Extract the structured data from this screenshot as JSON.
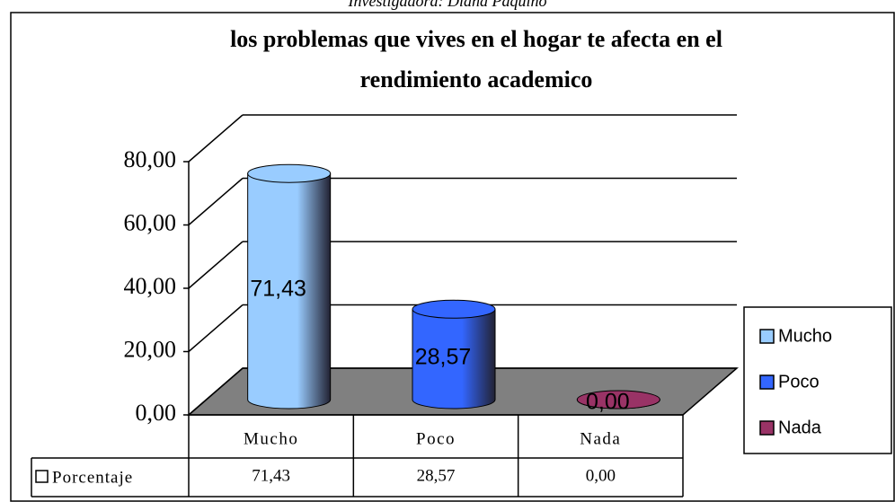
{
  "caption": "Investigadora: Diana Paquino",
  "chart_data": {
    "type": "bar3d",
    "title": [
      "los problemas que vives en el hogar te afecta en el",
      "rendimiento academico"
    ],
    "categories": [
      "Mucho",
      "Poco",
      "Nada"
    ],
    "colors": [
      "#99ccff",
      "#3366ff",
      "#993366"
    ],
    "series": [
      {
        "name": "Porcentaje",
        "values": [
          71.43,
          28.57,
          0.0
        ],
        "value_labels": [
          "71,43",
          "28,57",
          "0,00"
        ]
      }
    ],
    "ylim": [
      0,
      80
    ],
    "yticks": [
      {
        "value": 0,
        "label": "0,00"
      },
      {
        "value": 20,
        "label": "20,00"
      },
      {
        "value": 40,
        "label": "40,00"
      },
      {
        "value": 60,
        "label": "60,00"
      },
      {
        "value": 80,
        "label": "80,00"
      }
    ],
    "grid": true,
    "legend": "right"
  }
}
